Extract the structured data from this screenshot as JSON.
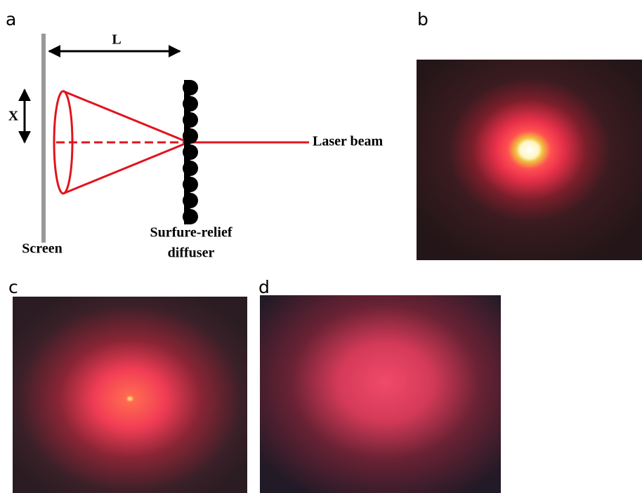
{
  "panels": {
    "a": "a",
    "b": "b",
    "c": "c",
    "d": "d"
  },
  "diagram": {
    "distance_label": "L",
    "spot_label": "X",
    "laser_label": "Laser beam",
    "diffuser_label": [
      "Surfure-relief",
      "diffuser"
    ],
    "screen_label": "Screen"
  }
}
